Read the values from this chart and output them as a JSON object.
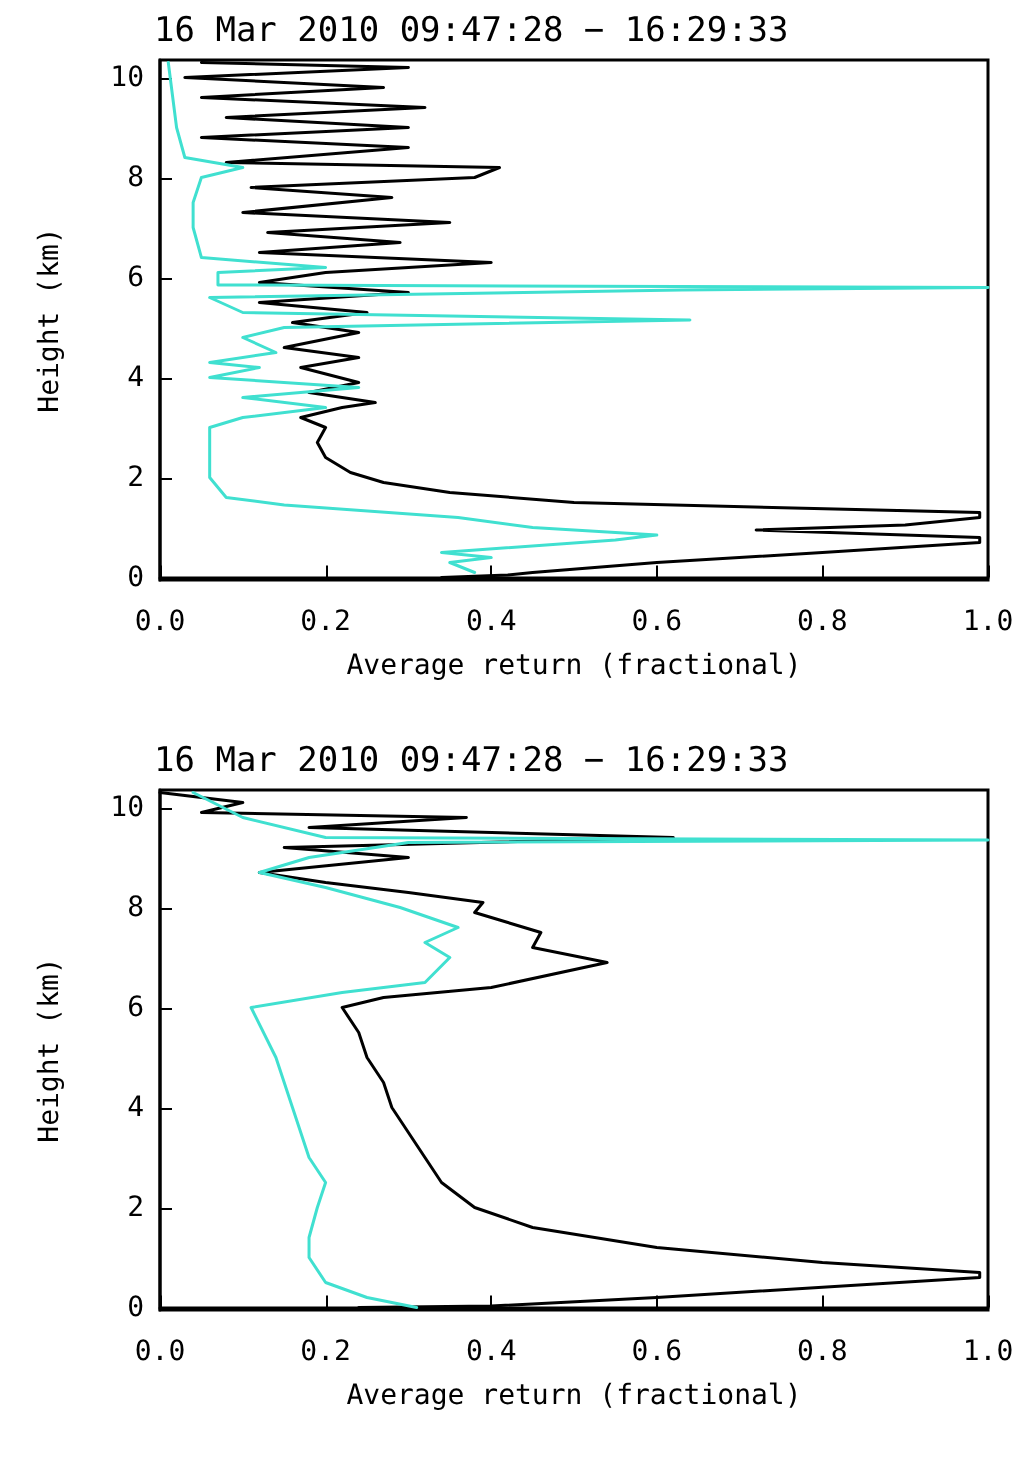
{
  "chart_data": [
    {
      "type": "line",
      "title": "16 Mar 2010 09:47:28 − 16:29:33",
      "xlabel": "Average return (fractional)",
      "ylabel": "Height (km)",
      "xlim": [
        0,
        1
      ],
      "xticks": [
        {
          "value": 0,
          "label": "0.0"
        },
        {
          "value": 0.2,
          "label": "0.2"
        },
        {
          "value": 0.4,
          "label": "0.4"
        },
        {
          "value": 0.6,
          "label": "0.6"
        },
        {
          "value": 0.8,
          "label": "0.8"
        },
        {
          "value": 1,
          "label": "1.0"
        }
      ],
      "ylim": [
        -0.05,
        10.35
      ],
      "yticks": [
        0,
        2,
        4,
        6,
        8,
        10
      ],
      "grid": false,
      "marker": "none",
      "line_style": "solid",
      "series": [
        {
          "color": "#000000",
          "x": [
            0.34,
            0.42,
            0.45,
            0.6,
            0.8,
            0.99,
            0.99,
            0.72,
            0.9,
            0.99,
            0.99,
            0.5,
            0.35,
            0.27,
            0.23,
            0.2,
            0.19,
            0.2,
            0.17,
            0.22,
            0.26,
            0.18,
            0.24,
            0.17,
            0.24,
            0.15,
            0.24,
            0.16,
            0.25,
            0.12,
            0.3,
            0.12,
            0.2,
            0.4,
            0.12,
            0.29,
            0.13,
            0.35,
            0.1,
            0.28,
            0.11,
            0.38,
            0.41,
            0.08,
            0.3,
            0.05,
            0.3,
            0.08,
            0.32,
            0.05,
            0.27,
            0.03,
            0.3,
            0.05
          ],
          "values": [
            0,
            0.05,
            0.1,
            0.3,
            0.5,
            0.7,
            0.8,
            0.95,
            1.05,
            1.2,
            1.3,
            1.5,
            1.7,
            1.9,
            2.1,
            2.4,
            2.7,
            3.0,
            3.2,
            3.4,
            3.5,
            3.7,
            3.9,
            4.2,
            4.4,
            4.6,
            4.9,
            5.1,
            5.3,
            5.5,
            5.7,
            5.9,
            6.1,
            6.3,
            6.5,
            6.7,
            6.9,
            7.1,
            7.3,
            7.6,
            7.8,
            8.0,
            8.2,
            8.3,
            8.6,
            8.8,
            9.0,
            9.2,
            9.4,
            9.6,
            9.8,
            10.0,
            10.2,
            10.3
          ]
        },
        {
          "color": "#40e0d0",
          "x": [
            0.38,
            0.35,
            0.4,
            0.34,
            0.55,
            0.6,
            0.45,
            0.36,
            0.15,
            0.08,
            0.06,
            0.06,
            0.06,
            0.1,
            0.2,
            0.1,
            0.24,
            0.06,
            0.12,
            0.06,
            0.14,
            0.1,
            0.15,
            0.64,
            0.1,
            0.06,
            0.63,
            1.0,
            0.07,
            0.07,
            0.2,
            0.05,
            0.04,
            0.04,
            0.05,
            0.1,
            0.03,
            0.02,
            0.01
          ],
          "values": [
            0.1,
            0.3,
            0.4,
            0.5,
            0.75,
            0.85,
            1.0,
            1.2,
            1.45,
            1.6,
            2.0,
            2.5,
            3.0,
            3.2,
            3.4,
            3.6,
            3.8,
            4.0,
            4.2,
            4.3,
            4.5,
            4.8,
            5.0,
            5.15,
            5.3,
            5.6,
            5.75,
            5.8,
            5.85,
            6.1,
            6.2,
            6.4,
            7.0,
            7.5,
            8.0,
            8.2,
            8.4,
            9.0,
            10.3
          ]
        }
      ]
    },
    {
      "type": "line",
      "title": "16 Mar 2010 09:47:28 − 16:29:33",
      "xlabel": "Average return (fractional)",
      "ylabel": "Height (km)",
      "xlim": [
        0,
        1
      ],
      "xticks": [
        {
          "value": 0,
          "label": "0.0"
        },
        {
          "value": 0.2,
          "label": "0.2"
        },
        {
          "value": 0.4,
          "label": "0.4"
        },
        {
          "value": 0.6,
          "label": "0.6"
        },
        {
          "value": 0.8,
          "label": "0.8"
        },
        {
          "value": 1,
          "label": "1.0"
        }
      ],
      "ylim": [
        -0.05,
        10.35
      ],
      "yticks": [
        0,
        2,
        4,
        6,
        8,
        10
      ],
      "grid": false,
      "marker": "none",
      "line_style": "solid",
      "series": [
        {
          "color": "#000000",
          "x": [
            0.24,
            0.4,
            0.6,
            0.99,
            0.99,
            0.8,
            0.6,
            0.45,
            0.38,
            0.34,
            0.32,
            0.3,
            0.28,
            0.27,
            0.25,
            0.24,
            0.22,
            0.27,
            0.4,
            0.54,
            0.45,
            0.46,
            0.38,
            0.39,
            0.3,
            0.2,
            0.12,
            0.3,
            0.15,
            0.62,
            0.18,
            0.37,
            0.05,
            0.1,
            0.0
          ],
          "values": [
            0,
            0.03,
            0.2,
            0.6,
            0.7,
            0.9,
            1.2,
            1.6,
            2.0,
            2.5,
            3.0,
            3.5,
            4.0,
            4.5,
            5.0,
            5.5,
            6.0,
            6.2,
            6.4,
            6.9,
            7.2,
            7.5,
            7.9,
            8.1,
            8.3,
            8.5,
            8.7,
            9.0,
            9.2,
            9.4,
            9.6,
            9.8,
            9.9,
            10.1,
            10.3
          ]
        },
        {
          "color": "#40e0d0",
          "x": [
            0.31,
            0.25,
            0.2,
            0.18,
            0.18,
            0.19,
            0.2,
            0.18,
            0.16,
            0.14,
            0.11,
            0.22,
            0.32,
            0.35,
            0.32,
            0.36,
            0.29,
            0.2,
            0.12,
            0.18,
            0.3,
            1.0,
            0.2,
            0.1,
            0.04
          ],
          "values": [
            0,
            0.2,
            0.5,
            1.0,
            1.4,
            2.0,
            2.5,
            3.0,
            4.0,
            5.0,
            6.0,
            6.3,
            6.5,
            7.0,
            7.3,
            7.6,
            8.0,
            8.4,
            8.7,
            9.0,
            9.3,
            9.35,
            9.4,
            9.8,
            10.3
          ]
        }
      ]
    }
  ]
}
